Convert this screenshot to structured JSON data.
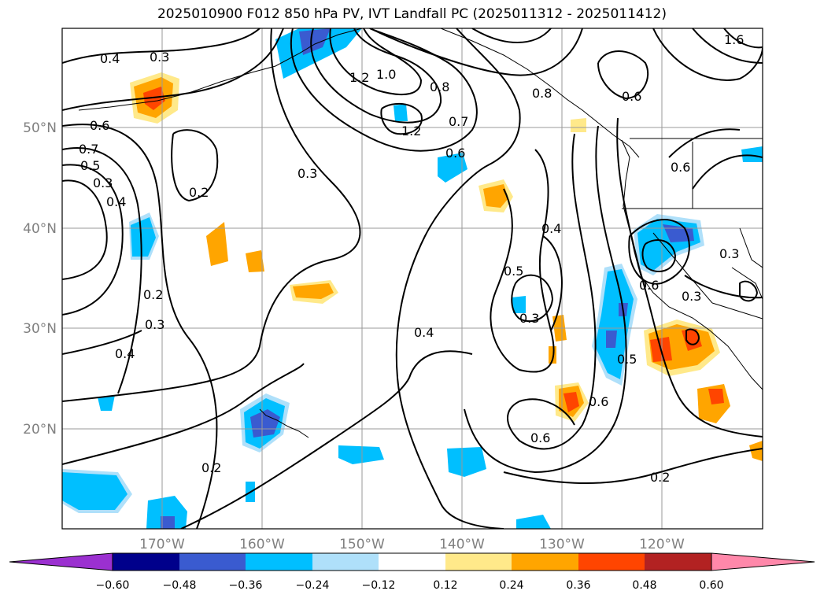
{
  "title": "2025010900 F012 850 hPa PV, IVT Landfall PC (2025011312 - 2025011412)",
  "map": {
    "lon_labels": [
      "170°W",
      "160°W",
      "150°W",
      "140°W",
      "130°W",
      "120°W"
    ],
    "lat_labels": [
      "50°N",
      "40°N",
      "30°N",
      "20°N"
    ],
    "contour_labels": [
      "0.4",
      "0.3",
      "0.6",
      "0.7",
      "0.5",
      "0.3",
      "0.4",
      "0.2",
      "0.2",
      "0.3",
      "0.4",
      "1.2",
      "1.0",
      "0.8",
      "0.7",
      "0.6",
      "1.2",
      "0.3",
      "0.4",
      "0.5",
      "0.3",
      "0.4",
      "0.6",
      "0.6",
      "0.2",
      "0.2",
      "0.5",
      "0.6",
      "0.3",
      "0.3",
      "0.6",
      "0.8",
      "0.6",
      "1.6"
    ]
  },
  "colorbar": {
    "ticks": [
      "−0.60",
      "−0.48",
      "−0.36",
      "−0.24",
      "−0.12",
      "0.12",
      "0.24",
      "0.36",
      "0.48",
      "0.60"
    ],
    "colors": [
      "#9b30d0",
      "#00008b",
      "#3a5bd0",
      "#00bfff",
      "#afe0fa",
      "#ffffff",
      "#ffe98a",
      "#ffa500",
      "#ff4500",
      "#b22222",
      "#ff88aa"
    ]
  }
}
